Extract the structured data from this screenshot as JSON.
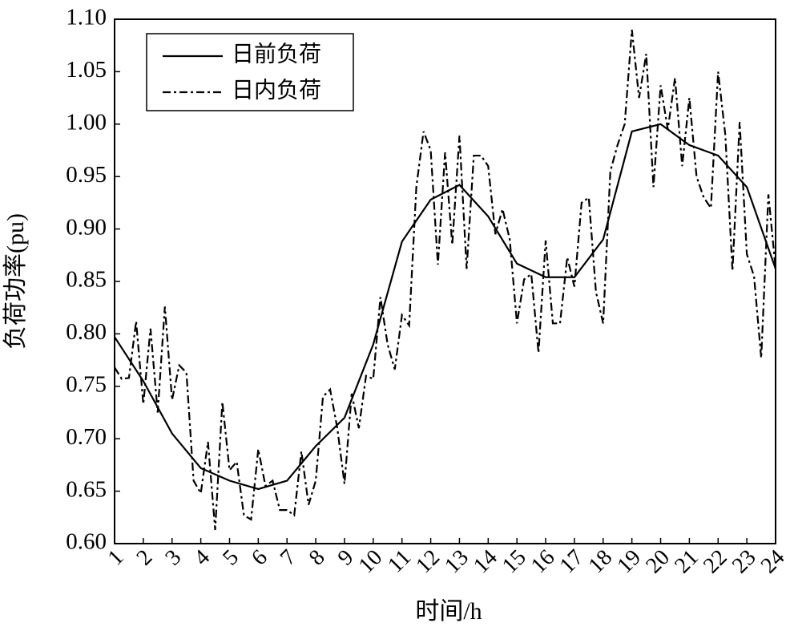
{
  "chart_data": {
    "type": "line",
    "xlabel": "时间/h",
    "ylabel": "负荷功率(pu)",
    "xlim": [
      1,
      24
    ],
    "ylim": [
      0.6,
      1.1
    ],
    "xticks": [
      1,
      2,
      3,
      4,
      5,
      6,
      7,
      8,
      9,
      10,
      11,
      12,
      13,
      14,
      15,
      16,
      17,
      18,
      19,
      20,
      21,
      22,
      23,
      24
    ],
    "yticks": [
      {
        "value": 0.6,
        "label": "0.60"
      },
      {
        "value": 0.65,
        "label": "0.65"
      },
      {
        "value": 0.7,
        "label": "0.70"
      },
      {
        "value": 0.75,
        "label": "0.75"
      },
      {
        "value": 0.8,
        "label": "0.80"
      },
      {
        "value": 0.85,
        "label": "0.85"
      },
      {
        "value": 0.9,
        "label": "0.90"
      },
      {
        "value": 0.95,
        "label": "0.95"
      },
      {
        "value": 1.0,
        "label": "1.00"
      },
      {
        "value": 1.05,
        "label": "1.05"
      },
      {
        "value": 1.1,
        "label": "1.10"
      }
    ],
    "legend": "upper left",
    "series": [
      {
        "name": "日前负荷",
        "color": "#000000",
        "style": "solid",
        "x": [
          1,
          2,
          3,
          4,
          5,
          6,
          7,
          8,
          9,
          10,
          11,
          12,
          13,
          14,
          15,
          16,
          17,
          18,
          19,
          20,
          21,
          22,
          23,
          24
        ],
        "values": [
          0.797,
          0.755,
          0.705,
          0.672,
          0.66,
          0.652,
          0.66,
          0.693,
          0.72,
          0.79,
          0.888,
          0.928,
          0.942,
          0.912,
          0.867,
          0.854,
          0.854,
          0.89,
          0.993,
          1.0,
          0.98,
          0.97,
          0.94,
          0.862
        ]
      },
      {
        "name": "日内负荷",
        "color": "#000000",
        "style": "dashdot",
        "x": [
          1,
          1.25,
          1.5,
          1.75,
          2,
          2.25,
          2.5,
          2.75,
          3,
          3.25,
          3.5,
          3.75,
          4,
          4.25,
          4.5,
          4.75,
          5,
          5.25,
          5.5,
          5.75,
          6,
          6.25,
          6.5,
          6.75,
          7,
          7.25,
          7.5,
          7.75,
          8,
          8.25,
          8.5,
          8.75,
          9,
          9.25,
          9.5,
          9.75,
          10,
          10.25,
          10.5,
          10.75,
          11,
          11.25,
          11.5,
          11.75,
          12,
          12.25,
          12.5,
          12.75,
          13,
          13.25,
          13.5,
          13.75,
          14,
          14.25,
          14.5,
          14.75,
          15,
          15.25,
          15.5,
          15.75,
          16,
          16.25,
          16.5,
          16.75,
          17,
          17.25,
          17.5,
          17.75,
          18,
          18.25,
          18.5,
          18.75,
          19,
          19.25,
          19.5,
          19.75,
          20,
          20.25,
          20.5,
          20.75,
          21,
          21.25,
          21.5,
          21.75,
          22,
          22.25,
          22.5,
          22.75,
          23,
          23.25,
          23.5,
          23.75,
          24
        ],
        "values": [
          0.768,
          0.757,
          0.758,
          0.812,
          0.733,
          0.805,
          0.725,
          0.826,
          0.737,
          0.77,
          0.763,
          0.66,
          0.648,
          0.697,
          0.613,
          0.735,
          0.67,
          0.678,
          0.627,
          0.623,
          0.69,
          0.655,
          0.66,
          0.632,
          0.632,
          0.627,
          0.688,
          0.637,
          0.66,
          0.74,
          0.747,
          0.71,
          0.657,
          0.743,
          0.71,
          0.76,
          0.757,
          0.835,
          0.79,
          0.766,
          0.818,
          0.808,
          0.94,
          0.993,
          0.975,
          0.866,
          0.973,
          0.885,
          0.989,
          0.862,
          0.97,
          0.97,
          0.96,
          0.895,
          0.919,
          0.89,
          0.81,
          0.852,
          0.857,
          0.782,
          0.889,
          0.81,
          0.81,
          0.873,
          0.845,
          0.925,
          0.93,
          0.84,
          0.81,
          0.955,
          0.98,
          1.0,
          1.09,
          1.025,
          1.067,
          0.94,
          1.037,
          0.995,
          1.044,
          0.96,
          1.025,
          0.95,
          0.93,
          0.92,
          1.05,
          0.99,
          0.86,
          1.002,
          0.876,
          0.855,
          0.777,
          0.933,
          0.862
        ]
      }
    ]
  }
}
